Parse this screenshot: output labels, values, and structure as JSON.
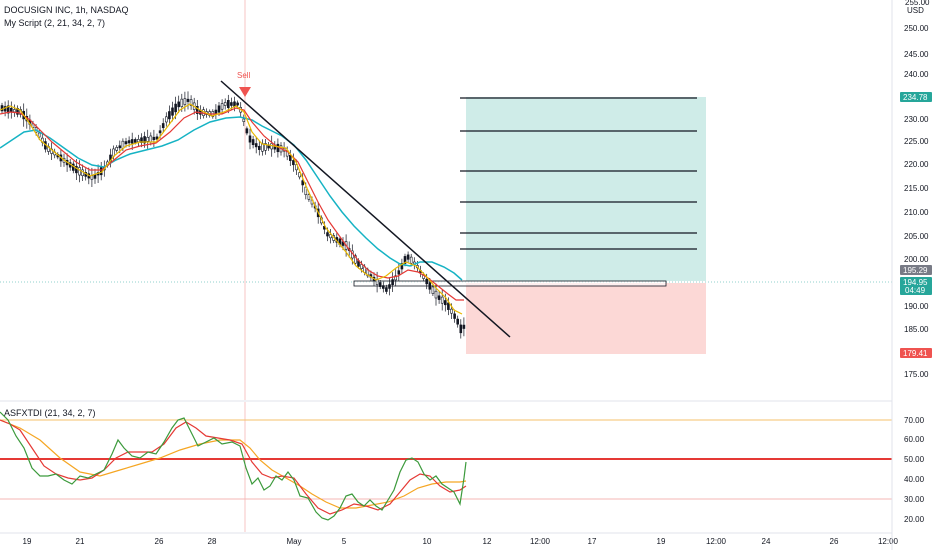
{
  "header": {
    "symbol_line": "DOCUSIGN INC, 1h, NASDAQ",
    "script_line": "My Script (2, 21, 34, 2, 7)",
    "indicator_line": "ASFXTDI (21, 34, 2, 7)",
    "sell_label": "Sell"
  },
  "price_axis": {
    "currency": "USD",
    "top_label": "255.00",
    "ticks": [
      "250.00",
      "245.00",
      "240.00",
      "235.00",
      "230.00",
      "225.00",
      "220.00",
      "215.00",
      "210.00",
      "205.00",
      "200.00",
      "195.00",
      "190.00",
      "185.00",
      "180.00",
      "175.00"
    ],
    "badges": [
      {
        "label": "234.78",
        "color": "#26a69a"
      },
      {
        "label": "195.29",
        "color": "#787b86"
      },
      {
        "label": "194.95",
        "sublabel": "04:49",
        "color": "#26a69a"
      },
      {
        "label": "179.41",
        "color": "#ef5350"
      }
    ]
  },
  "osc_axis": {
    "ticks": [
      "70.00",
      "60.00",
      "50.00",
      "40.00",
      "30.00",
      "20.00"
    ]
  },
  "time_axis": {
    "labels": [
      "19",
      "21",
      "26",
      "28",
      "May",
      "5",
      "10",
      "12",
      "12:00",
      "17",
      "19",
      "12:00",
      "24",
      "26",
      "12:00"
    ]
  },
  "colors": {
    "ema_fast": "#e8b800",
    "ema_mid": "#e53935",
    "ema_slow": "#16b3c4",
    "osc_green": "#3c9a3c",
    "osc_red": "#e53935",
    "osc_orange": "#f5a623",
    "profit_zone": "#cfece8",
    "loss_zone": "#fcd8d6",
    "sell_marker": "#ef5350"
  }
}
